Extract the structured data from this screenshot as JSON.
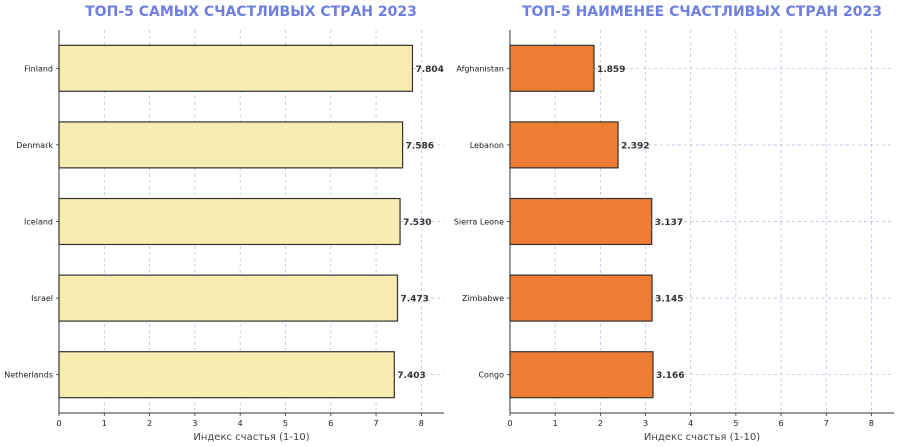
{
  "chart_data": [
    {
      "type": "bar",
      "orientation": "horizontal",
      "title": "ТОП-5 САМЫХ СЧАСТЛИВЫХ СТРАН 2023",
      "xlabel": "Индекс счастья (1-10)",
      "ylabel": "",
      "categories": [
        "Finland",
        "Denmark",
        "Iceland",
        "Israel",
        "Netherlands"
      ],
      "values": [
        7.804,
        7.586,
        7.53,
        7.473,
        7.403
      ],
      "value_labels": [
        "7.804",
        "7.586",
        "7.530",
        "7.473",
        "7.403"
      ],
      "xlim": [
        0,
        8.5
      ],
      "xticks": [
        0,
        1,
        2,
        3,
        4,
        5,
        6,
        7,
        8
      ],
      "grid": true,
      "bar_color": "#f7ecb0",
      "edge_color": "#333333",
      "title_color": "#6e7fe0"
    },
    {
      "type": "bar",
      "orientation": "horizontal",
      "title": "ТОП-5 НАИМЕНЕЕ СЧАСТЛИВЫХ СТРАН 2023",
      "xlabel": "Индекс счастья (1-10)",
      "ylabel": "",
      "categories": [
        "Afghanistan",
        "Lebanon",
        "Sierra Leone",
        "Zimbabwe",
        "Congo"
      ],
      "values": [
        1.859,
        2.392,
        3.137,
        3.145,
        3.166
      ],
      "value_labels": [
        "1.859",
        "2.392",
        "3.137",
        "3.145",
        "3.166"
      ],
      "xlim": [
        0,
        8.5
      ],
      "xticks": [
        0,
        1,
        2,
        3,
        4,
        5,
        6,
        7,
        8
      ],
      "grid": true,
      "bar_color": "#ee7d33",
      "edge_color": "#333333",
      "title_color": "#6e7fe0"
    }
  ]
}
